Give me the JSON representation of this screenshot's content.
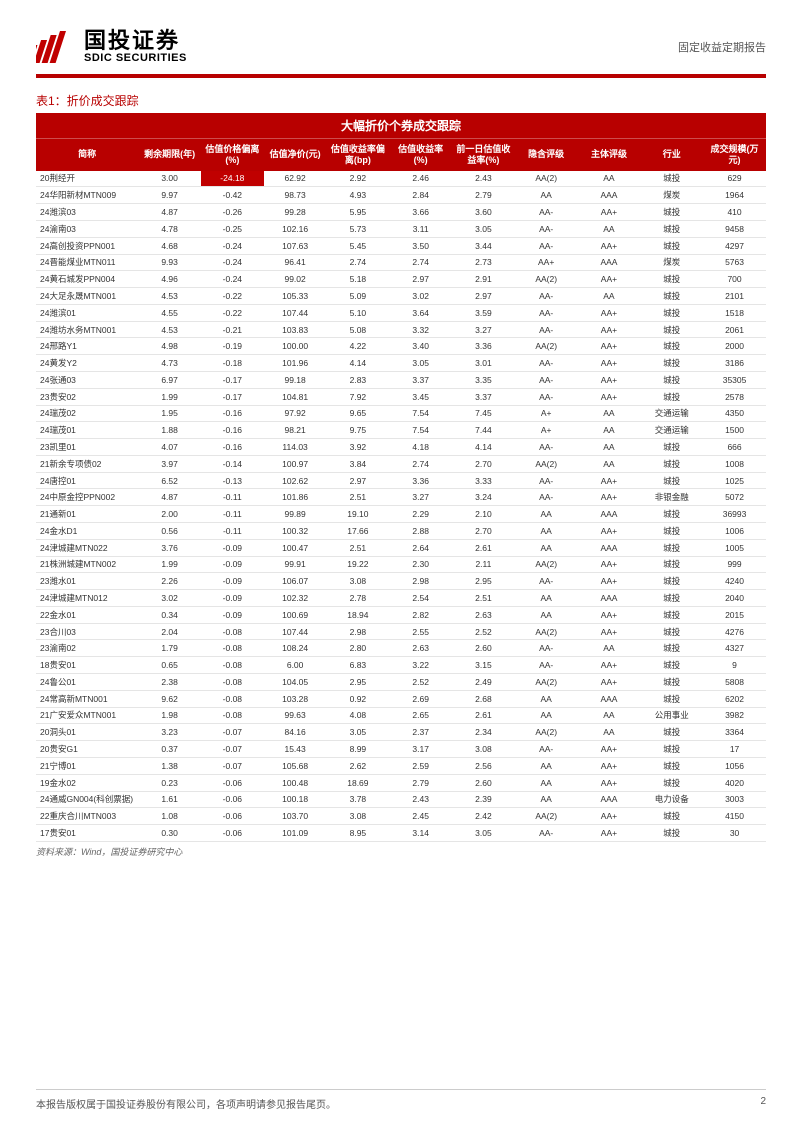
{
  "header": {
    "logo_cn": "国投证券",
    "logo_en": "SDIC SECURITIES",
    "header_right": "固定收益定期报告"
  },
  "table": {
    "title_label": "表1：折价成交跟踪",
    "main_header": "大幅折价个券成交跟踪",
    "columns": [
      "简称",
      "剩余期限(年)",
      "估值价格偏离(%)",
      "估值净价(元)",
      "估值收益率偏离(bp)",
      "估值收益率(%)",
      "前一日估值收益率(%)",
      "隐含评级",
      "主体评级",
      "行业",
      "成交规模(万元)"
    ],
    "highlight_cell": {
      "row": 0,
      "col": 2
    },
    "rows": [
      [
        "20荆经开",
        "3.00",
        "-24.18",
        "62.92",
        "2.92",
        "2.46",
        "2.43",
        "AA(2)",
        "AA",
        "城投",
        "629"
      ],
      [
        "24华阳新材MTN009",
        "9.97",
        "-0.42",
        "98.73",
        "4.93",
        "2.84",
        "2.79",
        "AA",
        "AAA",
        "煤炭",
        "1964"
      ],
      [
        "24潍滨03",
        "4.87",
        "-0.26",
        "99.28",
        "5.95",
        "3.66",
        "3.60",
        "AA-",
        "AA+",
        "城投",
        "410"
      ],
      [
        "24渝南03",
        "4.78",
        "-0.25",
        "102.16",
        "5.73",
        "3.11",
        "3.05",
        "AA-",
        "AA",
        "城投",
        "9458"
      ],
      [
        "24高创投资PPN001",
        "4.68",
        "-0.24",
        "107.63",
        "5.45",
        "3.50",
        "3.44",
        "AA-",
        "AA+",
        "城投",
        "4297"
      ],
      [
        "24晋能煤业MTN011",
        "9.93",
        "-0.24",
        "96.41",
        "2.74",
        "2.74",
        "2.73",
        "AA+",
        "AAA",
        "煤炭",
        "5763"
      ],
      [
        "24黄石城发PPN004",
        "4.96",
        "-0.24",
        "99.02",
        "5.18",
        "2.97",
        "2.91",
        "AA(2)",
        "AA+",
        "城投",
        "700"
      ],
      [
        "24大足永晟MTN001",
        "4.53",
        "-0.22",
        "105.33",
        "5.09",
        "3.02",
        "2.97",
        "AA-",
        "AA",
        "城投",
        "2101"
      ],
      [
        "24潍滨01",
        "4.55",
        "-0.22",
        "107.44",
        "5.10",
        "3.64",
        "3.59",
        "AA-",
        "AA+",
        "城投",
        "1518"
      ],
      [
        "24潍坊水务MTN001",
        "4.53",
        "-0.21",
        "103.83",
        "5.08",
        "3.32",
        "3.27",
        "AA-",
        "AA+",
        "城投",
        "2061"
      ],
      [
        "24邢路Y1",
        "4.98",
        "-0.19",
        "100.00",
        "4.22",
        "3.40",
        "3.36",
        "AA(2)",
        "AA+",
        "城投",
        "2000"
      ],
      [
        "24黄发Y2",
        "4.73",
        "-0.18",
        "101.96",
        "4.14",
        "3.05",
        "3.01",
        "AA-",
        "AA+",
        "城投",
        "3186"
      ],
      [
        "24张通03",
        "6.97",
        "-0.17",
        "99.18",
        "2.83",
        "3.37",
        "3.35",
        "AA-",
        "AA+",
        "城投",
        "35305"
      ],
      [
        "23贵安02",
        "1.99",
        "-0.17",
        "104.81",
        "7.92",
        "3.45",
        "3.37",
        "AA-",
        "AA+",
        "城投",
        "2578"
      ],
      [
        "24瑞茂02",
        "1.95",
        "-0.16",
        "97.92",
        "9.65",
        "7.54",
        "7.45",
        "A+",
        "AA",
        "交通运输",
        "4350"
      ],
      [
        "24瑞茂01",
        "1.88",
        "-0.16",
        "98.21",
        "9.75",
        "7.54",
        "7.44",
        "A+",
        "AA",
        "交通运输",
        "1500"
      ],
      [
        "23凯里01",
        "4.07",
        "-0.16",
        "114.03",
        "3.92",
        "4.18",
        "4.14",
        "AA-",
        "AA",
        "城投",
        "666"
      ],
      [
        "21新余专项债02",
        "3.97",
        "-0.14",
        "100.97",
        "3.84",
        "2.74",
        "2.70",
        "AA(2)",
        "AA",
        "城投",
        "1008"
      ],
      [
        "24唐控01",
        "6.52",
        "-0.13",
        "102.62",
        "2.97",
        "3.36",
        "3.33",
        "AA-",
        "AA+",
        "城投",
        "1025"
      ],
      [
        "24中原金控PPN002",
        "4.87",
        "-0.11",
        "101.86",
        "2.51",
        "3.27",
        "3.24",
        "AA-",
        "AA+",
        "非银金融",
        "5072"
      ],
      [
        "21通新01",
        "2.00",
        "-0.11",
        "99.89",
        "19.10",
        "2.29",
        "2.10",
        "AA",
        "AAA",
        "城投",
        "36993"
      ],
      [
        "24金水D1",
        "0.56",
        "-0.11",
        "100.32",
        "17.66",
        "2.88",
        "2.70",
        "AA",
        "AA+",
        "城投",
        "1006"
      ],
      [
        "24津城建MTN022",
        "3.76",
        "-0.09",
        "100.47",
        "2.51",
        "2.64",
        "2.61",
        "AA",
        "AAA",
        "城投",
        "1005"
      ],
      [
        "21株洲城建MTN002",
        "1.99",
        "-0.09",
        "99.91",
        "19.22",
        "2.30",
        "2.11",
        "AA(2)",
        "AA+",
        "城投",
        "999"
      ],
      [
        "23潍水01",
        "2.26",
        "-0.09",
        "106.07",
        "3.08",
        "2.98",
        "2.95",
        "AA-",
        "AA+",
        "城投",
        "4240"
      ],
      [
        "24津城建MTN012",
        "3.02",
        "-0.09",
        "102.32",
        "2.78",
        "2.54",
        "2.51",
        "AA",
        "AAA",
        "城投",
        "2040"
      ],
      [
        "22金水01",
        "0.34",
        "-0.09",
        "100.69",
        "18.94",
        "2.82",
        "2.63",
        "AA",
        "AA+",
        "城投",
        "2015"
      ],
      [
        "23合川03",
        "2.04",
        "-0.08",
        "107.44",
        "2.98",
        "2.55",
        "2.52",
        "AA(2)",
        "AA+",
        "城投",
        "4276"
      ],
      [
        "23渝南02",
        "1.79",
        "-0.08",
        "108.24",
        "2.80",
        "2.63",
        "2.60",
        "AA-",
        "AA",
        "城投",
        "4327"
      ],
      [
        "18贵安01",
        "0.65",
        "-0.08",
        "6.00",
        "6.83",
        "3.22",
        "3.15",
        "AA-",
        "AA+",
        "城投",
        "9"
      ],
      [
        "24鲁公01",
        "2.38",
        "-0.08",
        "104.05",
        "2.95",
        "2.52",
        "2.49",
        "AA(2)",
        "AA+",
        "城投",
        "5808"
      ],
      [
        "24常高新MTN001",
        "9.62",
        "-0.08",
        "103.28",
        "0.92",
        "2.69",
        "2.68",
        "AA",
        "AAA",
        "城投",
        "6202"
      ],
      [
        "21广安爱众MTN001",
        "1.98",
        "-0.08",
        "99.63",
        "4.08",
        "2.65",
        "2.61",
        "AA",
        "AA",
        "公用事业",
        "3982"
      ],
      [
        "20洞头01",
        "3.23",
        "-0.07",
        "84.16",
        "3.05",
        "2.37",
        "2.34",
        "AA(2)",
        "AA",
        "城投",
        "3364"
      ],
      [
        "20贵安G1",
        "0.37",
        "-0.07",
        "15.43",
        "8.99",
        "3.17",
        "3.08",
        "AA-",
        "AA+",
        "城投",
        "17"
      ],
      [
        "21宁博01",
        "1.38",
        "-0.07",
        "105.68",
        "2.62",
        "2.59",
        "2.56",
        "AA",
        "AA+",
        "城投",
        "1056"
      ],
      [
        "19金水02",
        "0.23",
        "-0.06",
        "100.48",
        "18.69",
        "2.79",
        "2.60",
        "AA",
        "AA+",
        "城投",
        "4020"
      ],
      [
        "24通威GN004(科创票据)",
        "1.61",
        "-0.06",
        "100.18",
        "3.78",
        "2.43",
        "2.39",
        "AA",
        "AAA",
        "电力设备",
        "3003"
      ],
      [
        "22重庆合川MTN003",
        "1.08",
        "-0.06",
        "103.70",
        "3.08",
        "2.45",
        "2.42",
        "AA(2)",
        "AA+",
        "城投",
        "4150"
      ],
      [
        "17贵安01",
        "0.30",
        "-0.06",
        "101.09",
        "8.95",
        "3.14",
        "3.05",
        "AA-",
        "AA+",
        "城投",
        "30"
      ]
    ],
    "source_note": "资料来源：Wind，国投证券研究中心"
  },
  "footer": {
    "left": "本报告版权属于国投证券股份有限公司，各项声明请参见报告尾页。",
    "page": "2"
  },
  "colors": {
    "brand_red": "#b80000",
    "highlight_red": "#c00000"
  }
}
